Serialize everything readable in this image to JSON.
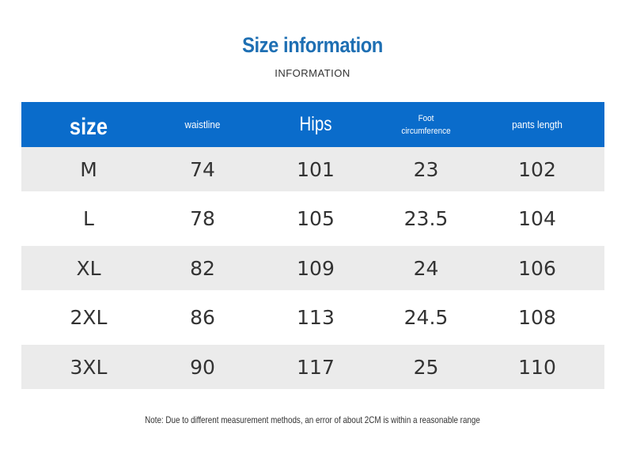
{
  "header": {
    "title": "Size information",
    "subtitle": "INFORMATION"
  },
  "table": {
    "columns": [
      "size",
      "waistline",
      "Hips",
      "Foot circumference",
      "pants length"
    ],
    "foot_line1": "Foot",
    "foot_line2": "circumference",
    "rows": [
      [
        "M",
        "74",
        "101",
        "23",
        "102"
      ],
      [
        "L",
        "78",
        "105",
        "23.5",
        "104"
      ],
      [
        "XL",
        "82",
        "109",
        "24",
        "106"
      ],
      [
        "2XL",
        "86",
        "113",
        "24.5",
        "108"
      ],
      [
        "3XL",
        "90",
        "117",
        "25",
        "110"
      ]
    ]
  },
  "footer": {
    "note": "Note: Due to different measurement methods, an error of about 2CM is within a reasonable range"
  },
  "colors": {
    "accent": "#1e6fb3",
    "header_bg": "#0a6ccb",
    "row_shade": "#ebebeb"
  }
}
